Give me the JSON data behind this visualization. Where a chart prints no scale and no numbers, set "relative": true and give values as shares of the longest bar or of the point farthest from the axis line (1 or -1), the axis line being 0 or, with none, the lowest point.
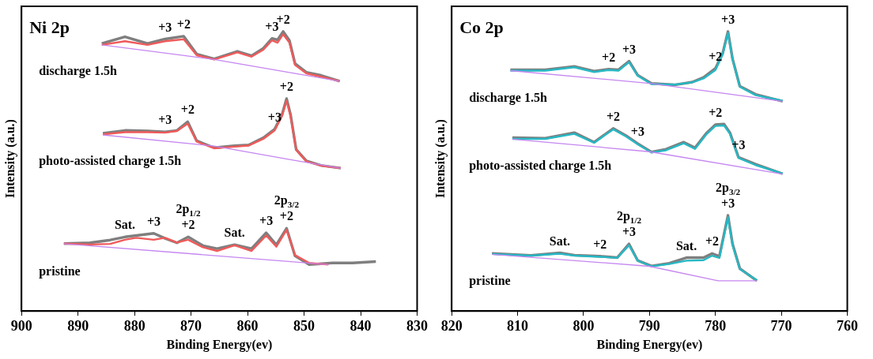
{
  "chart_data": [
    {
      "type": "line",
      "title": "Ni 2p",
      "xlabel": "Binding Energy(ev)",
      "ylabel": "Intensity (a.u.)",
      "relative": true,
      "xlim": [
        900,
        830
      ],
      "xticks": [
        900,
        890,
        880,
        870,
        860,
        850,
        840,
        830
      ],
      "grid": false,
      "legend": false,
      "marker": "none",
      "tick_labels": "x",
      "series": [
        {
          "name": "discharge 1.5h",
          "color": "#7f7f7f",
          "x": [
            885.8,
            881.7,
            877.7,
            874.6,
            871.3,
            869.0,
            865.9,
            861.8,
            859.3,
            857.2,
            855.7,
            854.7,
            853.7,
            852.6,
            851.6,
            849.6,
            847.0,
            843.7
          ],
          "values": [
            0.957,
            0.981,
            0.957,
            0.973,
            0.983,
            0.919,
            0.902,
            0.929,
            0.913,
            0.94,
            0.975,
            0.97,
            1,
            0.968,
            0.885,
            0.854,
            0.843,
            0.822
          ]
        },
        {
          "color": "#f05a5a",
          "x": [
            885.8,
            881.7,
            877.7,
            874.6,
            871.3,
            869.0,
            865.9,
            861.8,
            859.3,
            857.2,
            855.7,
            854.7,
            853.7,
            852.6,
            851.6,
            849.6,
            847.0,
            843.7
          ],
          "values": [
            0.952,
            0.965,
            0.952,
            0.965,
            0.972,
            0.915,
            0.9,
            0.925,
            0.91,
            0.935,
            0.968,
            0.96,
            0.99,
            0.96,
            0.88,
            0.85,
            0.838,
            0.822
          ]
        },
        {
          "color": "#c586f0",
          "x": [
            885.8,
            865.9,
            843.7
          ],
          "values": [
            0.952,
            0.9,
            0.822
          ]
        },
        {
          "name": "photo-assisted charge 1.5h",
          "color": "#7f7f7f",
          "x": [
            885.6,
            881.7,
            877.7,
            874.6,
            872.5,
            870.6,
            869.0,
            865.9,
            862.3,
            859.8,
            857.2,
            855.2,
            853.9,
            853.1,
            852.4,
            851.4,
            849.6,
            847.0,
            843.5
          ],
          "values": [
            0.636,
            0.646,
            0.644,
            0.641,
            0.646,
            0.677,
            0.609,
            0.584,
            0.591,
            0.594,
            0.62,
            0.651,
            0.703,
            0.76,
            0.703,
            0.578,
            0.537,
            0.521,
            0.511
          ]
        },
        {
          "color": "#f05a5a",
          "x": [
            885.6,
            881.7,
            877.7,
            874.6,
            872.5,
            870.6,
            869.0,
            865.9,
            862.3,
            859.8,
            857.2,
            855.2,
            853.9,
            853.1,
            852.4,
            851.4,
            849.6,
            847.0,
            843.5
          ],
          "values": [
            0.632,
            0.64,
            0.64,
            0.638,
            0.644,
            0.67,
            0.606,
            0.582,
            0.588,
            0.592,
            0.616,
            0.646,
            0.698,
            0.752,
            0.698,
            0.576,
            0.535,
            0.52,
            0.511
          ]
        },
        {
          "color": "#c586f0",
          "x": [
            885.6,
            865.9,
            852.0,
            843.5
          ],
          "values": [
            0.63,
            0.59,
            0.54,
            0.511
          ]
        },
        {
          "name": "pristine",
          "color": "#7f7f7f",
          "x": [
            892.5,
            887.9,
            884.3,
            881.7,
            879.7,
            876.6,
            874.6,
            872.5,
            870.5,
            867.9,
            865.4,
            862.3,
            859.3,
            856.7,
            854.9,
            853.1,
            851.6,
            849.1,
            845.0,
            841.4,
            837.3
          ],
          "values": [
            0.241,
            0.244,
            0.254,
            0.265,
            0.27,
            0.278,
            0.26,
            0.244,
            0.265,
            0.234,
            0.223,
            0.237,
            0.223,
            0.28,
            0.237,
            0.296,
            0.197,
            0.166,
            0.172,
            0.172,
            0.177
          ]
        },
        {
          "color": "#f05a5a",
          "x": [
            892.5,
            887.9,
            884.3,
            881.7,
            879.7,
            876.6,
            874.6,
            872.5,
            870.5,
            867.9,
            865.4,
            862.3,
            859.3,
            856.7,
            854.9,
            853.1,
            851.6,
            849.1,
            845.7
          ],
          "values": [
            0.241,
            0.238,
            0.24,
            0.255,
            0.262,
            0.255,
            0.262,
            0.245,
            0.255,
            0.228,
            0.215,
            0.235,
            0.215,
            0.27,
            0.23,
            0.29,
            0.2,
            0.172,
            0.166
          ]
        },
        {
          "color": "#c586f0",
          "x": [
            892.5,
            845.7
          ],
          "values": [
            0.241,
            0.166
          ]
        }
      ],
      "annotations": [
        {
          "text": "+3",
          "x": 874.6,
          "y": 0.973
        },
        {
          "text": "+2",
          "x": 871.3,
          "y": 0.983
        },
        {
          "text": "+3",
          "x": 855.7,
          "y": 0.975
        },
        {
          "text": "+2",
          "x": 853.7,
          "y": 1
        },
        {
          "text": "+3",
          "x": 874.6,
          "y": 0.641
        },
        {
          "text": "+2",
          "x": 870.6,
          "y": 0.677
        },
        {
          "text": "+3",
          "x": 855.2,
          "y": 0.651
        },
        {
          "text": "+2",
          "x": 853.1,
          "y": 0.76
        },
        {
          "text": "Sat.",
          "x": 881.7,
          "y": 0.265
        },
        {
          "text": "+3",
          "x": 876.6,
          "y": 0.278
        },
        {
          "text": "+2",
          "x": 870.5,
          "y": 0.265
        },
        {
          "text": "2p$_{1/2}$",
          "x": 870.5,
          "y": 0.265
        },
        {
          "text": "Sat.",
          "x": 862.3,
          "y": 0.237
        },
        {
          "text": "+3",
          "x": 856.7,
          "y": 0.28
        },
        {
          "text": "+2",
          "x": 853.1,
          "y": 0.296
        },
        {
          "text": "2p$_{3/2}$",
          "x": 853.1,
          "y": 0.296
        }
      ]
    },
    {
      "type": "line",
      "title": "Co 2p",
      "xlabel": "Binding Energy(ev)",
      "ylabel": "Intensity (a.u.)",
      "relative": true,
      "xlim": [
        820,
        760
      ],
      "xticks": [
        820,
        810,
        800,
        790,
        780,
        770,
        760
      ],
      "grid": false,
      "legend": false,
      "marker": "none",
      "tick_labels": "x",
      "series": [
        {
          "name": "discharge 1.5h",
          "color": "#7f7f7f",
          "x": [
            811.1,
            805.8,
            801.4,
            798.4,
            796.2,
            794.7,
            793.1,
            791.8,
            789.7,
            786.2,
            783.5,
            781.8,
            780.0,
            778.9,
            778.1,
            777.4,
            776.3,
            773.9,
            769.8
          ],
          "values": [
            0.863,
            0.863,
            0.875,
            0.858,
            0.865,
            0.863,
            0.894,
            0.844,
            0.814,
            0.809,
            0.819,
            0.836,
            0.868,
            0.922,
            1,
            0.902,
            0.804,
            0.775,
            0.75
          ]
        },
        {
          "color": "#26b8c4",
          "x": [
            811.1,
            805.8,
            801.4,
            798.4,
            796.2,
            794.7,
            793.1,
            791.8,
            789.7,
            786.2,
            783.5,
            781.8,
            780.0,
            778.9,
            778.1,
            777.4,
            776.3,
            773.9,
            769.8
          ],
          "values": [
            0.86,
            0.86,
            0.872,
            0.855,
            0.862,
            0.86,
            0.89,
            0.842,
            0.812,
            0.81,
            0.818,
            0.832,
            0.862,
            0.918,
            0.995,
            0.9,
            0.802,
            0.772,
            0.752
          ]
        },
        {
          "color": "#c586f0",
          "x": [
            811.1,
            789.7,
            769.8
          ],
          "values": [
            0.86,
            0.814,
            0.75
          ]
        },
        {
          "name": "photo-assisted charge 1.5h",
          "color": "#7f7f7f",
          "x": [
            810.8,
            805.8,
            801.4,
            798.4,
            795.5,
            793.6,
            791.8,
            789.7,
            787.5,
            784.8,
            783.1,
            781.3,
            780.0,
            778.7,
            777.8,
            776.5,
            773.9,
            769.8
          ],
          "values": [
            0.62,
            0.618,
            0.638,
            0.604,
            0.653,
            0.628,
            0.599,
            0.569,
            0.579,
            0.604,
            0.584,
            0.638,
            0.667,
            0.669,
            0.638,
            0.55,
            0.525,
            0.491
          ]
        },
        {
          "color": "#26b8c4",
          "x": [
            810.8,
            805.8,
            801.4,
            798.4,
            795.5,
            793.6,
            791.8,
            789.7,
            787.5,
            784.8,
            783.1,
            781.3,
            780.0,
            778.7,
            777.8,
            776.5,
            773.9,
            769.8
          ],
          "values": [
            0.616,
            0.616,
            0.634,
            0.602,
            0.65,
            0.625,
            0.597,
            0.567,
            0.575,
            0.6,
            0.58,
            0.634,
            0.662,
            0.664,
            0.634,
            0.548,
            0.522,
            0.492
          ]
        },
        {
          "color": "#c586f0",
          "x": [
            810.8,
            790.0,
            769.8
          ],
          "values": [
            0.615,
            0.57,
            0.49
          ]
        },
        {
          "name": "pristine",
          "color": "#7f7f7f",
          "x": [
            813.9,
            808.0,
            803.6,
            801.4,
            797.5,
            794.9,
            793.1,
            791.8,
            789.7,
            787.0,
            784.4,
            781.8,
            780.5,
            779.4,
            778.1,
            777.4,
            776.3,
            773.7
          ],
          "values": [
            0.206,
            0.199,
            0.208,
            0.2,
            0.196,
            0.191,
            0.24,
            0.181,
            0.161,
            0.171,
            0.191,
            0.191,
            0.206,
            0.196,
            0.342,
            0.24,
            0.152,
            0.108
          ]
        },
        {
          "color": "#26b8c4",
          "x": [
            813.9,
            808.0,
            803.6,
            801.4,
            797.5,
            794.9,
            793.1,
            791.8,
            789.7,
            787.0,
            784.4,
            781.8,
            780.5,
            779.4,
            778.1,
            777.4,
            776.3,
            773.7
          ],
          "values": [
            0.204,
            0.198,
            0.205,
            0.198,
            0.194,
            0.19,
            0.235,
            0.18,
            0.16,
            0.168,
            0.18,
            0.182,
            0.198,
            0.19,
            0.335,
            0.235,
            0.15,
            0.11
          ]
        },
        {
          "color": "#c586f0",
          "x": [
            813.9,
            790.0,
            779.6,
            773.7
          ],
          "values": [
            0.203,
            0.16,
            0.108,
            0.108
          ]
        }
      ],
      "annotations": [
        {
          "text": "+2",
          "x": 796.2,
          "y": 0.865
        },
        {
          "text": "+3",
          "x": 793.1,
          "y": 0.894
        },
        {
          "text": "+2",
          "x": 780.0,
          "y": 0.868
        },
        {
          "text": "+3",
          "x": 778.1,
          "y": 1
        },
        {
          "text": "+2",
          "x": 795.5,
          "y": 0.653
        },
        {
          "text": "+3",
          "x": 791.8,
          "y": 0.599
        },
        {
          "text": "+2",
          "x": 780.0,
          "y": 0.667
        },
        {
          "text": "+3",
          "x": 776.5,
          "y": 0.55
        },
        {
          "text": "Sat.",
          "x": 803.6,
          "y": 0.208
        },
        {
          "text": "+2",
          "x": 797.5,
          "y": 0.196
        },
        {
          "text": "+3",
          "x": 793.1,
          "y": 0.24
        },
        {
          "text": "2p$_{1/2}$",
          "x": 793.1,
          "y": 0.24
        },
        {
          "text": "Sat.",
          "x": 784.4,
          "y": 0.191
        },
        {
          "text": "+2",
          "x": 780.5,
          "y": 0.206
        },
        {
          "text": "+3",
          "x": 778.1,
          "y": 0.342
        },
        {
          "text": "2p$_{3/2}$",
          "x": 778.1,
          "y": 0.342
        }
      ]
    }
  ]
}
